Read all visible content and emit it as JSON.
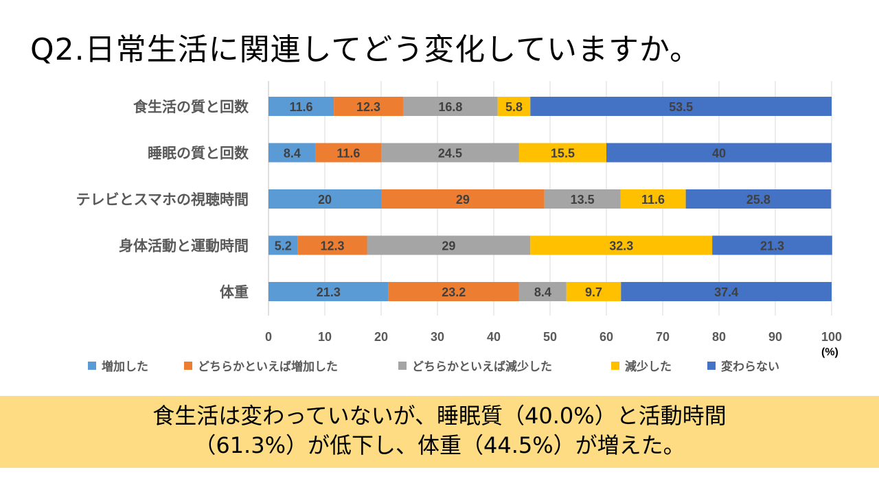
{
  "page": {
    "title": "Q2.日常生活に関連してどう変化していますか。",
    "summary_line1": "食生活は変わっていないが、睡眠質（40.0%）と活動時間",
    "summary_line2": "（61.3%）が低下し、体重（44.5%）が増えた。",
    "summary_bg": "#fddc83"
  },
  "chart_data": {
    "type": "bar",
    "orientation": "horizontal",
    "stacked": true,
    "unit": "(%)",
    "xlim": [
      0,
      100
    ],
    "xticks": [
      0,
      10,
      20,
      30,
      40,
      50,
      60,
      70,
      80,
      90,
      100
    ],
    "grid": "vertical",
    "legend_position": "bottom",
    "categories": [
      "食生活の質と回数",
      "睡眠の質と回数",
      "テレビとスマホの視聴時間",
      "身体活動と運動時間",
      "体重"
    ],
    "series": [
      {
        "name": "増加した",
        "color": "#5b9bd5",
        "values": [
          11.6,
          8.4,
          20,
          5.2,
          21.3
        ]
      },
      {
        "name": "どちらかといえば増加した",
        "color": "#ed7d31",
        "values": [
          12.3,
          11.6,
          29,
          12.3,
          23.2
        ]
      },
      {
        "name": "どちらかといえば減少した",
        "color": "#a5a5a5",
        "values": [
          16.8,
          24.5,
          13.5,
          29,
          8.4
        ]
      },
      {
        "name": "減少した",
        "color": "#ffc000",
        "values": [
          5.8,
          15.5,
          11.6,
          32.3,
          9.7
        ]
      },
      {
        "name": "変わらない",
        "color": "#4472c4",
        "values": [
          53.5,
          40,
          25.8,
          21.3,
          37.4
        ]
      }
    ]
  }
}
